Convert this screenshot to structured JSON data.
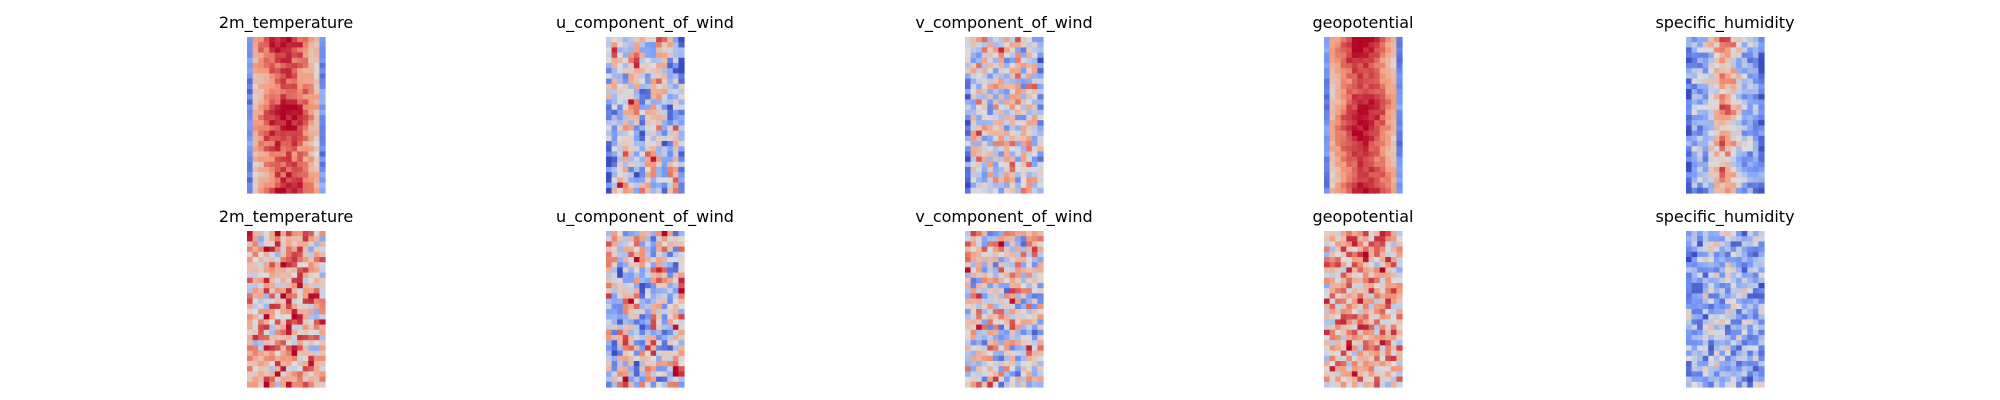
{
  "figure": {
    "title": "",
    "layout": "2 rows x 5 columns of heatmap panels"
  },
  "chart_data": [
    {
      "type": "heatmap",
      "row": 1,
      "col": 1,
      "title": "2m_temperature",
      "colormap": "coolwarm",
      "pattern": "center_band",
      "intensity": 0.85,
      "noise": 0.18,
      "edge_cold": true
    },
    {
      "type": "heatmap",
      "row": 1,
      "col": 2,
      "title": "u_component_of_wind",
      "colormap": "coolwarm",
      "pattern": "wind_streaks",
      "intensity": 0.55,
      "noise": 0.45,
      "edge_cold": true
    },
    {
      "type": "heatmap",
      "row": 1,
      "col": 3,
      "title": "v_component_of_wind",
      "colormap": "coolwarm",
      "pattern": "eddies",
      "intensity": 0.45,
      "noise": 0.55,
      "edge_cold": true
    },
    {
      "type": "heatmap",
      "row": 1,
      "col": 4,
      "title": "geopotential",
      "colormap": "coolwarm",
      "pattern": "center_band",
      "intensity": 0.9,
      "noise": 0.12,
      "edge_cold": true
    },
    {
      "type": "heatmap",
      "row": 1,
      "col": 5,
      "title": "specific_humidity",
      "colormap": "coolwarm",
      "pattern": "humidity_core",
      "intensity": 0.8,
      "noise": 0.35,
      "edge_cold": true
    },
    {
      "type": "heatmap",
      "row": 2,
      "col": 1,
      "title": "2m_temperature",
      "colormap": "coolwarm",
      "pattern": "noisy_warm",
      "intensity": 0.6,
      "noise": 0.55,
      "edge_cold": false
    },
    {
      "type": "heatmap",
      "row": 2,
      "col": 2,
      "title": "u_component_of_wind",
      "colormap": "coolwarm",
      "pattern": "wind_streaks",
      "intensity": 0.4,
      "noise": 0.6,
      "edge_cold": false
    },
    {
      "type": "heatmap",
      "row": 2,
      "col": 3,
      "title": "v_component_of_wind",
      "colormap": "coolwarm",
      "pattern": "eddies",
      "intensity": 0.4,
      "noise": 0.65,
      "edge_cold": false
    },
    {
      "type": "heatmap",
      "row": 2,
      "col": 4,
      "title": "geopotential",
      "colormap": "coolwarm",
      "pattern": "noisy_warm",
      "intensity": 0.65,
      "noise": 0.5,
      "edge_cold": false
    },
    {
      "type": "heatmap",
      "row": 2,
      "col": 5,
      "title": "specific_humidity",
      "colormap": "coolwarm",
      "pattern": "humidity_cold",
      "intensity": 0.75,
      "noise": 0.45,
      "edge_cold": false
    }
  ]
}
